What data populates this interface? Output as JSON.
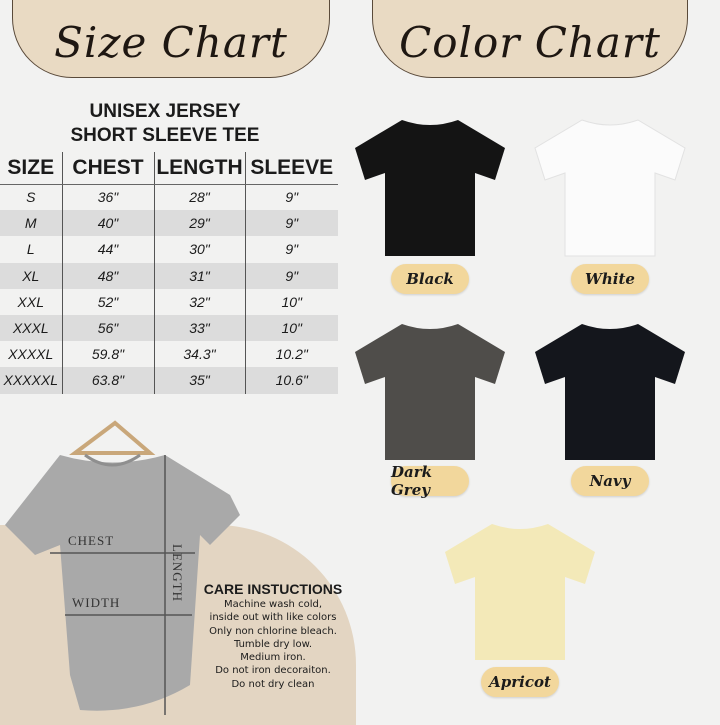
{
  "headers": {
    "size_chart": "Size Chart",
    "color_chart": "Color Chart"
  },
  "product": {
    "line1": "UNISEX JERSEY",
    "line2": "SHORT SLEEVE TEE"
  },
  "table": {
    "columns": [
      "SIZE",
      "CHEST",
      "LENGTH",
      "SLEEVE"
    ],
    "rows": [
      [
        "S",
        "36\"",
        "28\"",
        "9\""
      ],
      [
        "M",
        "40\"",
        "29\"",
        "9\""
      ],
      [
        "L",
        "44\"",
        "30\"",
        "9\""
      ],
      [
        "XL",
        "48\"",
        "31\"",
        "9\""
      ],
      [
        "XXL",
        "52\"",
        "32\"",
        "10\""
      ],
      [
        "XXXL",
        "56\"",
        "33\"",
        "10\""
      ],
      [
        "XXXXL",
        "59.8\"",
        "34.3\"",
        "10.2\""
      ],
      [
        "XXXXXL",
        "63.8\"",
        "35\"",
        "10.6\""
      ]
    ]
  },
  "diagram": {
    "chest": "CHEST",
    "width": "WIDTH",
    "length": "LENGTH"
  },
  "care": {
    "title": "CARE INSTUCTIONS",
    "lines": [
      "Machine wash cold,",
      "inside out with like colors",
      "Only non chlorine bleach.",
      "Tumble dry low.",
      "Medium iron.",
      "Do not iron decoraiton.",
      "Do not dry clean"
    ]
  },
  "colors": [
    {
      "name": "Black",
      "hex": "#141414"
    },
    {
      "name": "White",
      "hex": "#fbfbfb"
    },
    {
      "name": "Dark Grey",
      "hex": "#4f4d4a"
    },
    {
      "name": "Navy",
      "hex": "#14161c"
    },
    {
      "name": "Apricot",
      "hex": "#f3e9b8"
    }
  ]
}
